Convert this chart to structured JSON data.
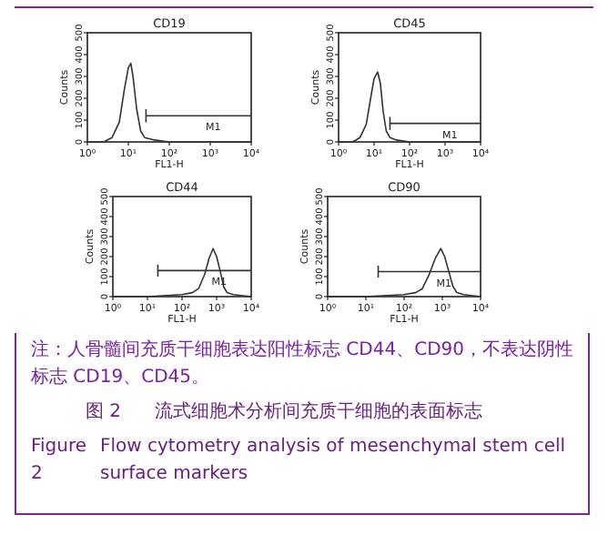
{
  "chart_data": [
    {
      "type": "line",
      "title": "CD19",
      "xlabel": "FL1-H",
      "ylabel": "Counts",
      "log": "x",
      "xlim": [
        1,
        10000
      ],
      "ylim": [
        0,
        500
      ],
      "xticks": [
        {
          "value": 1,
          "label": "10⁰"
        },
        {
          "value": 10,
          "label": "10¹"
        },
        {
          "value": 100,
          "label": "10²"
        },
        {
          "value": 1000,
          "label": "10³"
        },
        {
          "value": 10000,
          "label": "10⁴"
        }
      ],
      "yticks": [
        0,
        100,
        200,
        300,
        400,
        500
      ],
      "series": [
        {
          "color": "#333333",
          "x": [
            1,
            2.5,
            4,
            6,
            8,
            10,
            11.5,
            13,
            16,
            20,
            25,
            40,
            100,
            1000,
            10000
          ],
          "values": [
            0,
            0,
            20,
            90,
            240,
            340,
            360,
            300,
            150,
            50,
            20,
            10,
            0,
            0,
            0
          ]
        },
        {
          "name": "M1",
          "type": "line",
          "color": "#333333",
          "x": [
            27,
            10000
          ],
          "values": [
            120,
            120
          ],
          "errors": [
            30,
            null
          ]
        }
      ]
    },
    {
      "type": "line",
      "title": "CD45",
      "xlabel": "FL1-H",
      "ylabel": "Counts",
      "log": "x",
      "xlim": [
        1,
        10000
      ],
      "ylim": [
        0,
        500
      ],
      "xticks": [
        {
          "value": 1,
          "label": "10⁰"
        },
        {
          "value": 10,
          "label": "10¹"
        },
        {
          "value": 100,
          "label": "10²"
        },
        {
          "value": 1000,
          "label": "10³"
        },
        {
          "value": 10000,
          "label": "10⁴"
        }
      ],
      "yticks": [
        0,
        100,
        200,
        300,
        400,
        500
      ],
      "series": [
        {
          "color": "#333333",
          "x": [
            1,
            2.5,
            4,
            6,
            8,
            10,
            12.6,
            15,
            18,
            22,
            28,
            40,
            100,
            1000,
            10000
          ],
          "values": [
            0,
            0,
            20,
            80,
            200,
            290,
            320,
            270,
            140,
            50,
            20,
            10,
            0,
            0,
            0
          ]
        },
        {
          "name": "M1",
          "type": "line",
          "color": "#333333",
          "x": [
            28,
            10000
          ],
          "values": [
            85,
            85
          ],
          "errors": [
            30,
            null
          ]
        }
      ]
    },
    {
      "type": "line",
      "title": "CD44",
      "xlabel": "FL1-H",
      "ylabel": "Counts",
      "log": "x",
      "xlim": [
        1,
        10000
      ],
      "ylim": [
        0,
        500
      ],
      "xticks": [
        {
          "value": 1,
          "label": "10⁰"
        },
        {
          "value": 10,
          "label": "10¹"
        },
        {
          "value": 100,
          "label": "10²"
        },
        {
          "value": 1000,
          "label": "10³"
        },
        {
          "value": 10000,
          "label": "10⁴"
        }
      ],
      "yticks": [
        0,
        100,
        200,
        300,
        400,
        500
      ],
      "series": [
        {
          "color": "#333333",
          "x": [
            1,
            10,
            100,
            200,
            300,
            450,
            600,
            790,
            1000,
            1300,
            1600,
            2000,
            3000,
            10000
          ],
          "values": [
            0,
            0,
            10,
            20,
            40,
            110,
            190,
            240,
            200,
            120,
            50,
            20,
            10,
            0
          ]
        },
        {
          "name": "M1",
          "type": "line",
          "color": "#333333",
          "x": [
            20,
            10000
          ],
          "values": [
            130,
            130
          ],
          "errors": [
            30,
            null
          ]
        }
      ]
    },
    {
      "type": "line",
      "title": "CD90",
      "xlabel": "FL1-H",
      "ylabel": "Counts",
      "log": "x",
      "xlim": [
        1,
        10000
      ],
      "ylim": [
        0,
        500
      ],
      "xticks": [
        {
          "value": 1,
          "label": "10⁰"
        },
        {
          "value": 10,
          "label": "10¹"
        },
        {
          "value": 100,
          "label": "10²"
        },
        {
          "value": 1000,
          "label": "10³"
        },
        {
          "value": 10000,
          "label": "10⁴"
        }
      ],
      "yticks": [
        0,
        100,
        200,
        300,
        400,
        500
      ],
      "series": [
        {
          "color": "#333333",
          "x": [
            1,
            10,
            100,
            200,
            300,
            450,
            650,
            910,
            1150,
            1500,
            1900,
            2400,
            3500,
            10000
          ],
          "values": [
            0,
            0,
            10,
            20,
            40,
            110,
            190,
            240,
            200,
            120,
            50,
            20,
            10,
            0
          ]
        },
        {
          "name": "M1",
          "type": "line",
          "color": "#333333",
          "x": [
            21,
            10000
          ],
          "values": [
            125,
            125
          ],
          "errors": [
            30,
            null
          ]
        }
      ]
    },
    {
      "type": "other",
      "annotations": [
        "注：人骨髓间充质干细胞表达阳性标志 CD44、CD90，不表达阴性标志 CD19、CD45。",
        "图 2　流式细胞术分析间充质干细胞的表面标志",
        "Figure 2　Flow cytometry analysis of mesenchymal stem cell surface markers"
      ]
    }
  ]
}
